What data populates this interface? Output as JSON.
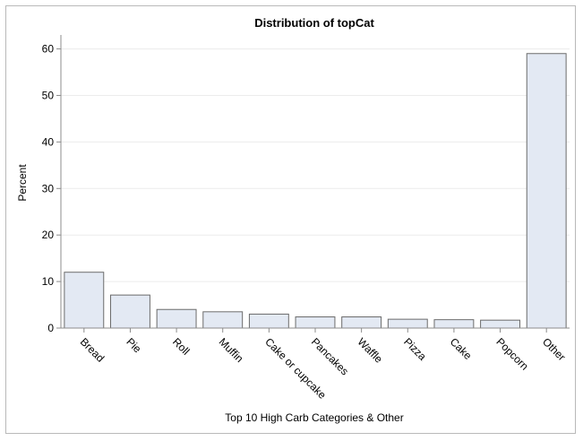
{
  "chart_data": {
    "type": "bar",
    "title": "Distribution of topCat",
    "xlabel": "Top 10 High Carb Categories & Other",
    "ylabel": "Percent",
    "categories": [
      "Bread",
      "Pie",
      "Roll",
      "Muffin",
      "Cake or cupcake",
      "Pancakes",
      "Waffle",
      "Pizza",
      "Cake",
      "Popcorn",
      "Other"
    ],
    "values": [
      12.0,
      7.1,
      4.0,
      3.5,
      3.0,
      2.4,
      2.4,
      1.9,
      1.8,
      1.7,
      59.0
    ],
    "ylim": [
      0,
      63
    ],
    "yticks": [
      0,
      10,
      20,
      30,
      40,
      50,
      60
    ],
    "grid": true,
    "colors": {
      "bar_fill": "#e3e9f3",
      "bar_stroke": "#6b6b6b"
    }
  }
}
